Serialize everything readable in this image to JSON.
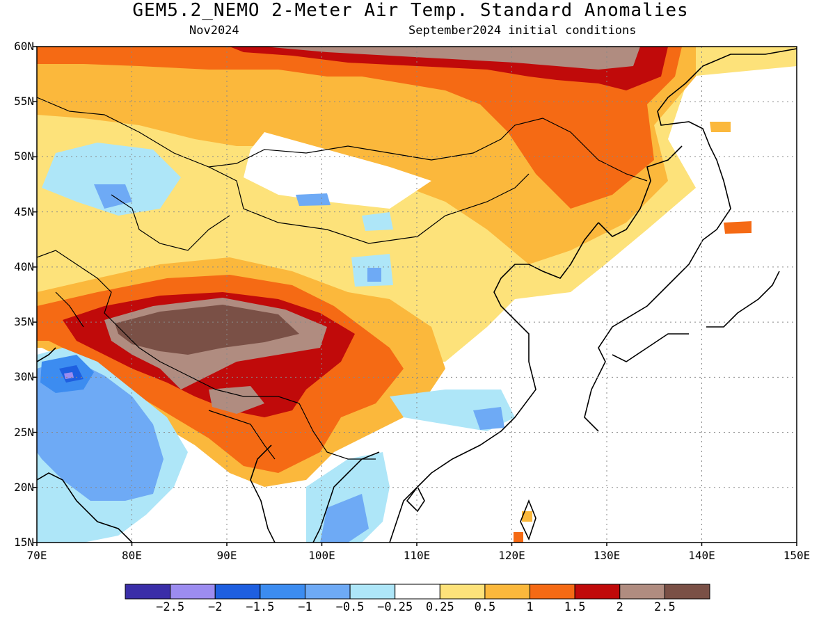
{
  "title": "GEM5.2_NEMO 2-Meter Air Temp. Standard Anomalies",
  "subtitle_left": "Nov2024",
  "subtitle_right": "September2024 initial conditions",
  "map": {
    "lon_range": [
      70,
      150
    ],
    "lat_range": [
      15,
      60
    ],
    "lat_ticks": [
      "60N",
      "55N",
      "50N",
      "45N",
      "40N",
      "35N",
      "30N",
      "25N",
      "20N",
      "15N"
    ],
    "lon_ticks": [
      "70E",
      "80E",
      "90E",
      "100E",
      "110E",
      "120E",
      "130E",
      "140E",
      "150E"
    ],
    "grid": "dotted"
  },
  "colorbar": {
    "colors": [
      "#3a2ea8",
      "#9c8cf0",
      "#1e5fe0",
      "#3c8cf0",
      "#6eaaf5",
      "#aee6f8",
      "#ffffff",
      "#fde27a",
      "#fbb83c",
      "#f56a14",
      "#c00a0a",
      "#b08c80",
      "#7a5046"
    ],
    "labels": [
      "−2.5",
      "−2",
      "−1.5",
      "−1",
      "−0.5",
      "−0.25",
      "0.25",
      "0.5",
      "1",
      "1.5",
      "2",
      "2.5"
    ]
  }
}
